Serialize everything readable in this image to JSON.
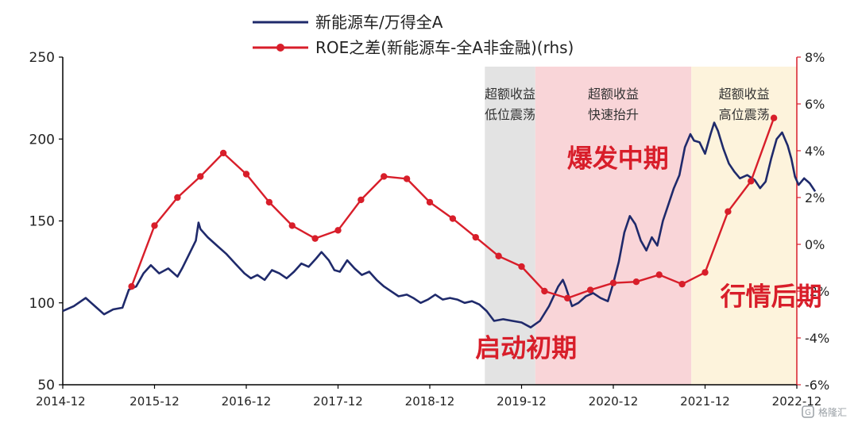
{
  "chart_data": {
    "type": "line",
    "legend": {
      "placement": "top-center",
      "items": [
        {
          "label": "新能源车/万得全A",
          "color": "#1f2a6b",
          "marker": "line"
        },
        {
          "label": "ROE之差(新能源车-全A非金融)(rhs)",
          "color": "#d81e2a",
          "marker": "line-dot"
        }
      ]
    },
    "x_axis": {
      "ticks": [
        "2014-12",
        "2015-12",
        "2016-12",
        "2017-12",
        "2018-12",
        "2019-12",
        "2020-12",
        "2021-12",
        "2022-12"
      ]
    },
    "y_axis_left": {
      "ylim": [
        50,
        250
      ],
      "ticks": [
        "50",
        "100",
        "150",
        "200",
        "250"
      ]
    },
    "y_axis_right": {
      "ylim": [
        -6,
        8
      ],
      "ticks": [
        "-6%",
        "-4%",
        "-2%",
        "0%",
        "2%",
        "4%",
        "6%",
        "8%"
      ],
      "color": "#d81e2a"
    },
    "regions": [
      {
        "label_lines": [
          "超额收益",
          "低位震荡"
        ],
        "start": 4.6,
        "end": 5.15,
        "color": "#e3e3e3"
      },
      {
        "label_lines": [
          "超额收益",
          "快速抬升"
        ],
        "start": 5.15,
        "end": 6.85,
        "color": "#f9d5d8"
      },
      {
        "label_lines": [
          "超额收益",
          "高位震荡"
        ],
        "start": 6.85,
        "end": 8.0,
        "color": "#fdf3dc"
      }
    ],
    "annotations": [
      {
        "text": "启动初期",
        "x": 5.05,
        "y_right": -4.8
      },
      {
        "text": "爆发中期",
        "x": 6.05,
        "y_right": 3.3
      },
      {
        "text": "行情后期",
        "x": 7.72,
        "y_right": -2.6
      }
    ],
    "series": [
      {
        "name": "新能源车/万得全A",
        "axis": "left",
        "color": "#1f2a6b",
        "points": [
          [
            0.0,
            95
          ],
          [
            0.12,
            98
          ],
          [
            0.25,
            103
          ],
          [
            0.35,
            98
          ],
          [
            0.45,
            93
          ],
          [
            0.55,
            96
          ],
          [
            0.65,
            97
          ],
          [
            0.72,
            108
          ],
          [
            0.8,
            110
          ],
          [
            0.88,
            118
          ],
          [
            0.96,
            123
          ],
          [
            1.05,
            118
          ],
          [
            1.15,
            121
          ],
          [
            1.25,
            116
          ],
          [
            1.3,
            121
          ],
          [
            1.38,
            130
          ],
          [
            1.45,
            138
          ],
          [
            1.48,
            149
          ],
          [
            1.5,
            145
          ],
          [
            1.58,
            140
          ],
          [
            1.68,
            135
          ],
          [
            1.78,
            130
          ],
          [
            1.88,
            124
          ],
          [
            1.98,
            118
          ],
          [
            2.05,
            115
          ],
          [
            2.12,
            117
          ],
          [
            2.2,
            114
          ],
          [
            2.28,
            120
          ],
          [
            2.36,
            118
          ],
          [
            2.44,
            115
          ],
          [
            2.52,
            119
          ],
          [
            2.6,
            124
          ],
          [
            2.68,
            122
          ],
          [
            2.76,
            127
          ],
          [
            2.82,
            131
          ],
          [
            2.9,
            126
          ],
          [
            2.96,
            120
          ],
          [
            3.02,
            119
          ],
          [
            3.1,
            126
          ],
          [
            3.18,
            121
          ],
          [
            3.26,
            117
          ],
          [
            3.34,
            119
          ],
          [
            3.42,
            114
          ],
          [
            3.5,
            110
          ],
          [
            3.58,
            107
          ],
          [
            3.66,
            104
          ],
          [
            3.75,
            105
          ],
          [
            3.82,
            103
          ],
          [
            3.9,
            100
          ],
          [
            3.98,
            102
          ],
          [
            4.06,
            105
          ],
          [
            4.14,
            102
          ],
          [
            4.22,
            103
          ],
          [
            4.3,
            102
          ],
          [
            4.38,
            100
          ],
          [
            4.46,
            101
          ],
          [
            4.54,
            99
          ],
          [
            4.62,
            95
          ],
          [
            4.7,
            89
          ],
          [
            4.8,
            90
          ],
          [
            4.9,
            89
          ],
          [
            5.0,
            88
          ],
          [
            5.1,
            85
          ],
          [
            5.2,
            89
          ],
          [
            5.3,
            98
          ],
          [
            5.4,
            110
          ],
          [
            5.45,
            114
          ],
          [
            5.48,
            110
          ],
          [
            5.55,
            98
          ],
          [
            5.62,
            100
          ],
          [
            5.7,
            104
          ],
          [
            5.78,
            106
          ],
          [
            5.86,
            103
          ],
          [
            5.94,
            101
          ],
          [
            6.0,
            112
          ],
          [
            6.06,
            125
          ],
          [
            6.12,
            143
          ],
          [
            6.18,
            153
          ],
          [
            6.24,
            148
          ],
          [
            6.3,
            138
          ],
          [
            6.36,
            132
          ],
          [
            6.42,
            140
          ],
          [
            6.48,
            135
          ],
          [
            6.54,
            150
          ],
          [
            6.6,
            160
          ],
          [
            6.66,
            170
          ],
          [
            6.72,
            178
          ],
          [
            6.78,
            195
          ],
          [
            6.84,
            203
          ],
          [
            6.88,
            199
          ],
          [
            6.94,
            198
          ],
          [
            7.0,
            191
          ],
          [
            7.06,
            203
          ],
          [
            7.1,
            210
          ],
          [
            7.14,
            205
          ],
          [
            7.2,
            194
          ],
          [
            7.26,
            185
          ],
          [
            7.32,
            180
          ],
          [
            7.38,
            176
          ],
          [
            7.46,
            178
          ],
          [
            7.54,
            175
          ],
          [
            7.6,
            170
          ],
          [
            7.66,
            174
          ],
          [
            7.72,
            188
          ],
          [
            7.78,
            200
          ],
          [
            7.84,
            204
          ],
          [
            7.9,
            196
          ],
          [
            7.94,
            188
          ],
          [
            7.98,
            177
          ],
          [
            8.02,
            172
          ],
          [
            8.08,
            176
          ],
          [
            8.14,
            173
          ],
          [
            8.2,
            168
          ]
        ]
      },
      {
        "name": "ROE之差(新能源车-全A非金融)(rhs)",
        "axis": "right",
        "color": "#d81e2a",
        "points": [
          [
            0.75,
            -1.8
          ],
          [
            1.0,
            0.8
          ],
          [
            1.25,
            2.0
          ],
          [
            1.5,
            2.9
          ],
          [
            1.75,
            3.9
          ],
          [
            2.0,
            3.0
          ],
          [
            2.25,
            1.8
          ],
          [
            2.5,
            0.8
          ],
          [
            2.75,
            0.25
          ],
          [
            3.0,
            0.6
          ],
          [
            3.25,
            1.9
          ],
          [
            3.5,
            2.9
          ],
          [
            3.75,
            2.8
          ],
          [
            4.0,
            1.8
          ],
          [
            4.25,
            1.1
          ],
          [
            4.5,
            0.3
          ],
          [
            4.75,
            -0.5
          ],
          [
            5.0,
            -0.95
          ],
          [
            5.25,
            -2.0
          ],
          [
            5.5,
            -2.3
          ],
          [
            5.75,
            -1.95
          ],
          [
            6.0,
            -1.65
          ],
          [
            6.25,
            -1.6
          ],
          [
            6.5,
            -1.3
          ],
          [
            6.75,
            -1.7
          ],
          [
            7.0,
            -1.2
          ],
          [
            7.25,
            1.4
          ],
          [
            7.5,
            2.7
          ],
          [
            7.75,
            5.4
          ]
        ]
      }
    ]
  }
}
